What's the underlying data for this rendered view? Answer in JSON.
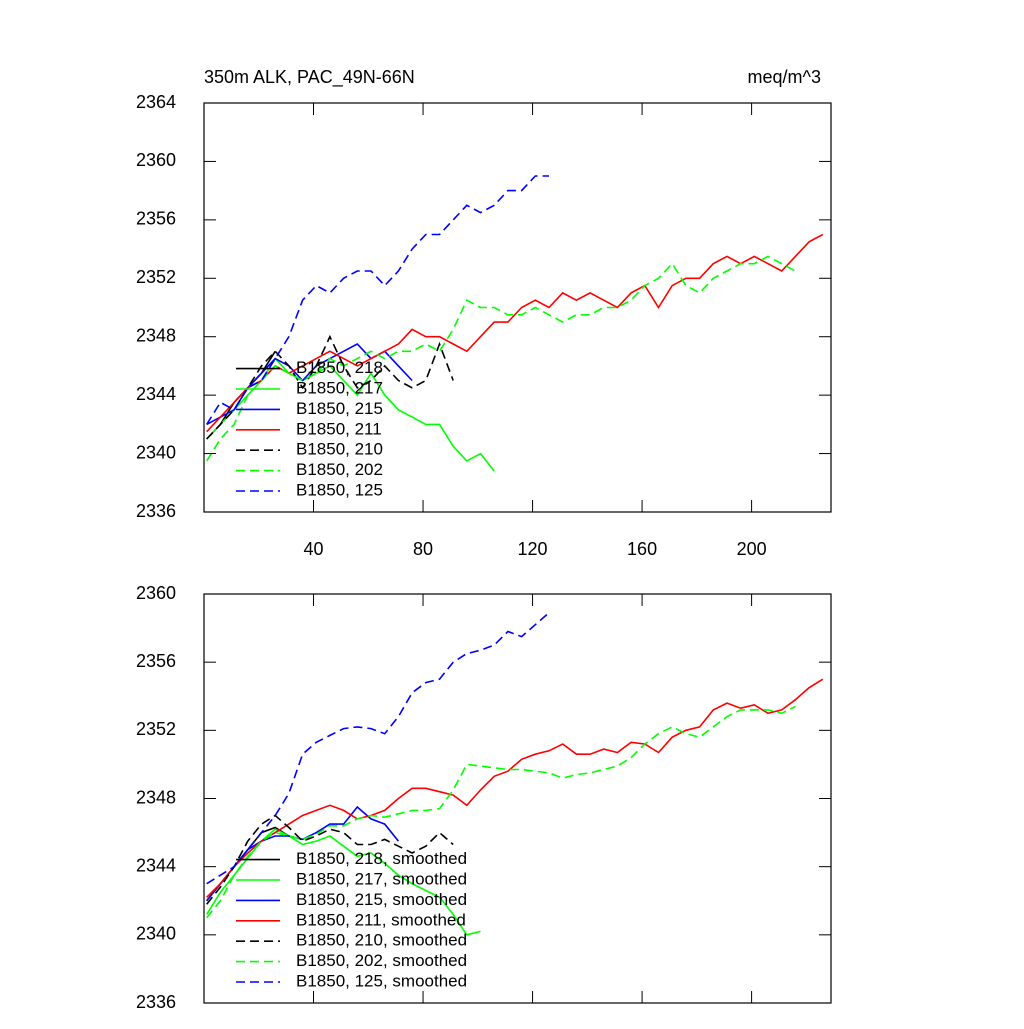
{
  "chart_data": [
    {
      "type": "line",
      "title": "350m ALK, PAC_49N-66N",
      "subtitle": "meq/m^3",
      "x": [
        1,
        6,
        11,
        16,
        21,
        26,
        31,
        36,
        41,
        46,
        51,
        56,
        61,
        66,
        71,
        76,
        81,
        86,
        91,
        96,
        101,
        106,
        111,
        116,
        121,
        126,
        131,
        136,
        141,
        146,
        151,
        156,
        161,
        166,
        171,
        176,
        181,
        186,
        191,
        196,
        201,
        206,
        211,
        216,
        221,
        226
      ],
      "xlim": [
        0,
        229
      ],
      "xticks": [
        40,
        80,
        120,
        160,
        200
      ],
      "ylim": [
        2336,
        2364
      ],
      "yticks": [
        2336,
        2340,
        2344,
        2348,
        2352,
        2356,
        2360,
        2364
      ],
      "legend": "lower left",
      "series": [
        {
          "name": "B1850, 218",
          "color": "#000000",
          "dashed": false,
          "values": [
            2341,
            2342,
            2343.5,
            2344.5,
            2345.5,
            2347,
            null,
            null,
            null,
            null,
            null,
            null,
            null,
            null,
            null,
            null,
            null,
            null,
            null,
            null,
            null,
            null,
            null,
            null,
            null,
            null,
            null,
            null,
            null,
            null,
            null,
            null,
            null,
            null,
            null,
            null,
            null,
            null,
            null,
            null,
            null,
            null,
            null,
            null,
            null,
            null
          ]
        },
        {
          "name": "B1850, 217",
          "color": "#00ff00",
          "dashed": false,
          "values": [
            2341,
            2342,
            2343,
            2344,
            2345,
            2346.5,
            2345.5,
            2345,
            2345.5,
            2346,
            2345,
            2344,
            2345.5,
            2344,
            2343,
            2342.5,
            2342,
            2342,
            2340.5,
            2339.5,
            2340,
            2338.8,
            null,
            null,
            null,
            null,
            null,
            null,
            null,
            null,
            null,
            null,
            null,
            null,
            null,
            null,
            null,
            null,
            null,
            null,
            null,
            null,
            null,
            null,
            null,
            null
          ]
        },
        {
          "name": "B1850, 215",
          "color": "#0000ff",
          "dashed": false,
          "values": [
            2342,
            2342.5,
            2343,
            2344.5,
            2345.5,
            2346.5,
            2346,
            2345,
            2346,
            2346.5,
            2347,
            2347.5,
            2346.5,
            2347,
            2346,
            2345,
            null,
            null,
            null,
            null,
            null,
            null,
            null,
            null,
            null,
            null,
            null,
            null,
            null,
            null,
            null,
            null,
            null,
            null,
            null,
            null,
            null,
            null,
            null,
            null,
            null,
            null,
            null,
            null,
            null,
            null
          ]
        },
        {
          "name": "B1850, 211",
          "color": "#ff0000",
          "dashed": false,
          "values": [
            2341.5,
            2342.5,
            2343.5,
            2344.5,
            2345,
            2346,
            2345.5,
            2346,
            2346.5,
            2347,
            2346.5,
            2346,
            2346.5,
            2347,
            2347.5,
            2348.5,
            2348,
            2348,
            2347.5,
            2347,
            2348,
            2349,
            2349,
            2350,
            2350.5,
            2350,
            2351,
            2350.5,
            2351,
            2350.5,
            2350,
            2351,
            2351.5,
            2350,
            2351.5,
            2352,
            2352,
            2353,
            2353.5,
            2353,
            2353.5,
            2353,
            2352.5,
            2353.5,
            2354.5,
            2355
          ]
        },
        {
          "name": "B1850, 210",
          "color": "#000000",
          "dashed": true,
          "values": [
            2341,
            2342,
            2343,
            2344.5,
            2346,
            2347,
            2346,
            2344.5,
            2346,
            2348,
            2346,
            2344.5,
            2345,
            2346,
            2345,
            2344.5,
            2345,
            2347.5,
            2345,
            null,
            null,
            null,
            null,
            null,
            null,
            null,
            null,
            null,
            null,
            null,
            null,
            null,
            null,
            null,
            null,
            null,
            null,
            null,
            null,
            null,
            null,
            null,
            null,
            null,
            null,
            null
          ]
        },
        {
          "name": "B1850, 202",
          "color": "#00ff00",
          "dashed": true,
          "values": [
            2339.5,
            2341,
            2342,
            2344,
            2345,
            2346,
            2345.5,
            2345,
            2345.5,
            2346.5,
            2346,
            2346.5,
            2347,
            2346.5,
            2347,
            2347,
            2347.5,
            2347,
            2348.5,
            2350.5,
            2350,
            2350,
            2349.5,
            2349.5,
            2350,
            2349.5,
            2349,
            2349.5,
            2349.5,
            2350,
            2350,
            2350.5,
            2351.5,
            2352,
            2353,
            2351.5,
            2351,
            2352,
            2352.5,
            2353,
            2353,
            2353.5,
            2353,
            2352.5,
            null,
            null
          ]
        },
        {
          "name": "B1850, 125",
          "color": "#0000ff",
          "dashed": true,
          "values": [
            2342,
            2343.5,
            2343,
            2344.5,
            2345,
            2346.5,
            2348,
            2350.5,
            2351.5,
            2351,
            2352,
            2352.5,
            2352.5,
            2351.5,
            2352.5,
            2354,
            2355,
            2355,
            2356,
            2357,
            2356.5,
            2357,
            2358,
            2358,
            2359,
            2359,
            null,
            null,
            null,
            null,
            null,
            null,
            null,
            null,
            null,
            null,
            null,
            null,
            null,
            null,
            null,
            null,
            null,
            null,
            null,
            null
          ]
        }
      ]
    },
    {
      "type": "line",
      "x": [
        1,
        6,
        11,
        16,
        21,
        26,
        31,
        36,
        41,
        46,
        51,
        56,
        61,
        66,
        71,
        76,
        81,
        86,
        91,
        96,
        101,
        106,
        111,
        116,
        121,
        126,
        131,
        136,
        141,
        146,
        151,
        156,
        161,
        166,
        171,
        176,
        181,
        186,
        191,
        196,
        201,
        206,
        211,
        216,
        221,
        226
      ],
      "xlim": [
        0,
        229
      ],
      "xticks": [
        40,
        80,
        120,
        160,
        200
      ],
      "ylim": [
        2336,
        2360
      ],
      "yticks": [
        2336,
        2340,
        2344,
        2348,
        2352,
        2356,
        2360
      ],
      "legend": "lower left",
      "series": [
        {
          "name": "B1850, 218, smoothed",
          "color": "#000000",
          "dashed": false,
          "values": [
            2342,
            2343,
            2344,
            2345,
            2346,
            2346.3,
            2345.8,
            null,
            null,
            null,
            null,
            null,
            null,
            null,
            null,
            null,
            null,
            null,
            null,
            null,
            null,
            null,
            null,
            null,
            null,
            null,
            null,
            null,
            null,
            null,
            null,
            null,
            null,
            null,
            null,
            null,
            null,
            null,
            null,
            null,
            null,
            null,
            null,
            null,
            null,
            null
          ]
        },
        {
          "name": "B1850, 217, smoothed",
          "color": "#00ff00",
          "dashed": false,
          "values": [
            2341.2,
            2342.5,
            2343.5,
            2344.5,
            2345.5,
            2346.2,
            2345.8,
            2345.3,
            2345.5,
            2345.8,
            2345.2,
            2344.6,
            2344.8,
            2344.2,
            2343.5,
            2343,
            2342.6,
            2342.2,
            2341.2,
            2340,
            2340.2,
            null,
            null,
            null,
            null,
            null,
            null,
            null,
            null,
            null,
            null,
            null,
            null,
            null,
            null,
            null,
            null,
            null,
            null,
            null,
            null,
            null,
            null,
            null,
            null,
            null
          ]
        },
        {
          "name": "B1850, 215, smoothed",
          "color": "#0000ff",
          "dashed": false,
          "values": [
            2342,
            2343,
            2344,
            2345,
            2345.5,
            2345.8,
            2345.8,
            2345.6,
            2346,
            2346.5,
            2346.5,
            2347.5,
            2346.8,
            2346.5,
            2345.5,
            null,
            null,
            null,
            null,
            null,
            null,
            null,
            null,
            null,
            null,
            null,
            null,
            null,
            null,
            null,
            null,
            null,
            null,
            null,
            null,
            null,
            null,
            null,
            null,
            null,
            null,
            null,
            null,
            null,
            null,
            null
          ]
        },
        {
          "name": "B1850, 211, smoothed",
          "color": "#ff0000",
          "dashed": false,
          "values": [
            2342.2,
            2343,
            2344,
            2344.8,
            2345.5,
            2346,
            2346.5,
            2347,
            2347.3,
            2347.6,
            2347.3,
            2346.8,
            2347,
            2347.3,
            2348,
            2348.6,
            2348.6,
            2348.4,
            2348.2,
            2347.6,
            2348.5,
            2349.3,
            2349.6,
            2350.3,
            2350.6,
            2350.8,
            2351.2,
            2350.6,
            2350.6,
            2350.9,
            2350.7,
            2351.3,
            2351.2,
            2350.7,
            2351.6,
            2352,
            2352.2,
            2353.2,
            2353.6,
            2353.3,
            2353.5,
            2353,
            2353.2,
            2353.8,
            2354.5,
            2355
          ]
        },
        {
          "name": "B1850, 210, smoothed",
          "color": "#000000",
          "dashed": true,
          "values": [
            2341.8,
            2342.8,
            2344,
            2345.5,
            2346.5,
            2347,
            2346.3,
            2345.5,
            2345.8,
            2346.2,
            2346,
            2345.3,
            2345.3,
            2345.6,
            2345.2,
            2344.8,
            2345.2,
            2346,
            2345.3,
            null,
            null,
            null,
            null,
            null,
            null,
            null,
            null,
            null,
            null,
            null,
            null,
            null,
            null,
            null,
            null,
            null,
            null,
            null,
            null,
            null,
            null,
            null,
            null,
            null,
            null,
            null
          ]
        },
        {
          "name": "B1850, 202, smoothed",
          "color": "#00ff00",
          "dashed": true,
          "values": [
            2341,
            2342,
            2343.5,
            2344.6,
            2345.5,
            2346,
            2345.8,
            2345.6,
            2345.9,
            2346.4,
            2346.4,
            2346.8,
            2347,
            2346.9,
            2347.1,
            2347.3,
            2347.3,
            2347.4,
            2348.5,
            2350,
            2349.9,
            2349.8,
            2349.7,
            2349.7,
            2349.6,
            2349.5,
            2349.2,
            2349.4,
            2349.5,
            2349.7,
            2349.9,
            2350.4,
            2351.2,
            2351.8,
            2352.2,
            2351.8,
            2351.6,
            2352.2,
            2352.8,
            2353.2,
            2353.2,
            2353.2,
            2353,
            2353.4,
            null,
            null
          ]
        },
        {
          "name": "B1850, 125, smoothed",
          "color": "#0000ff",
          "dashed": true,
          "values": [
            2343,
            2343.5,
            2344,
            2345,
            2346,
            2347,
            2348.3,
            2350.6,
            2351.3,
            2351.7,
            2352.1,
            2352.2,
            2352.1,
            2351.8,
            2352.8,
            2354.2,
            2354.8,
            2355,
            2356,
            2356.5,
            2356.7,
            2357,
            2357.8,
            2357.5,
            2358.2,
            2358.9,
            null,
            null,
            null,
            null,
            null,
            null,
            null,
            null,
            null,
            null,
            null,
            null,
            null,
            null,
            null,
            null,
            null,
            null,
            null,
            null
          ]
        }
      ]
    }
  ]
}
